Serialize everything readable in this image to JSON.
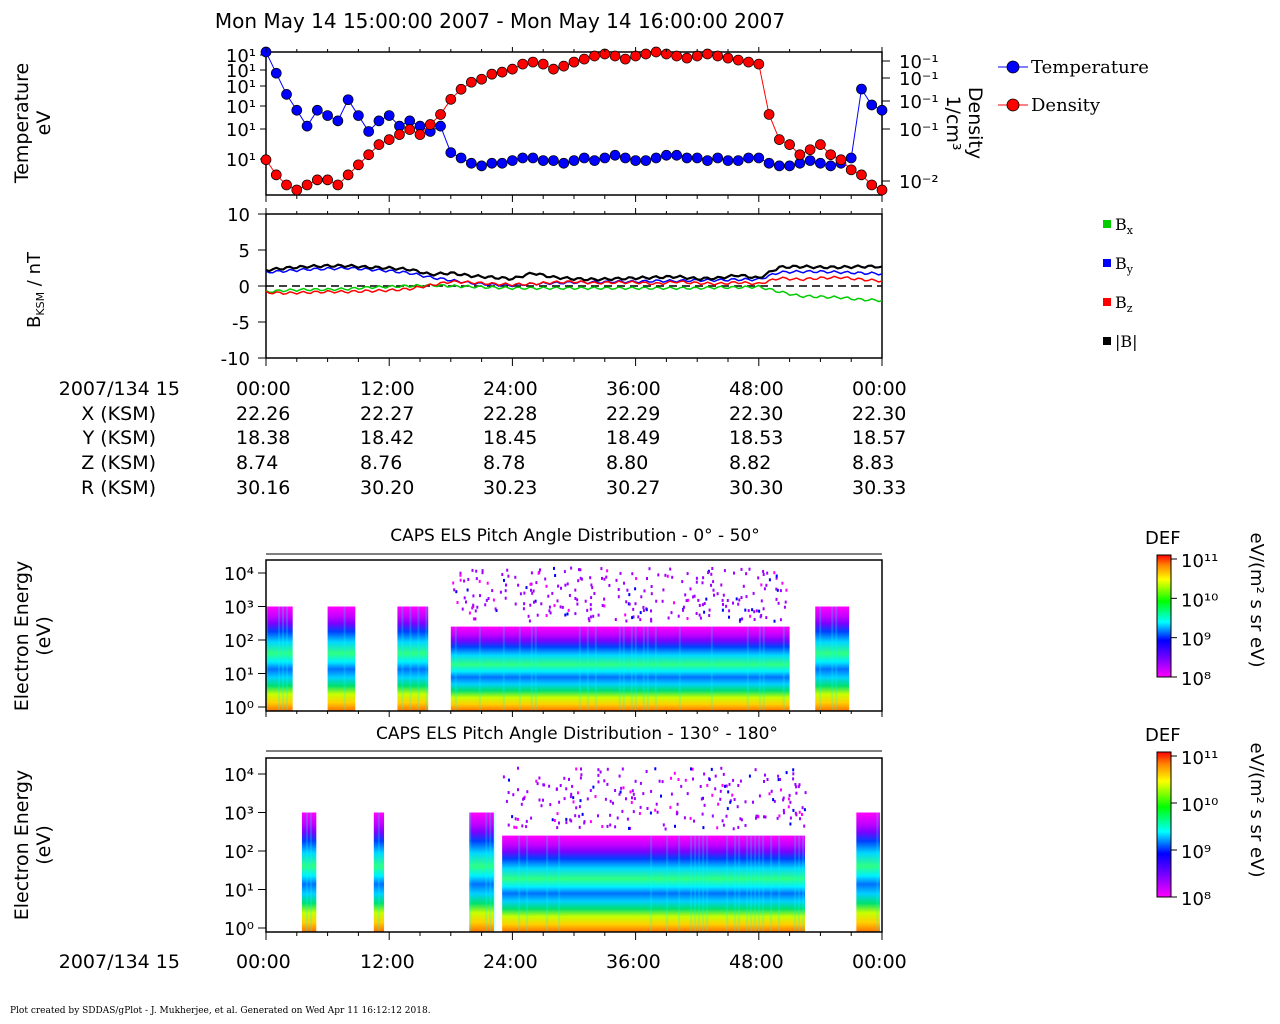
{
  "title": "Mon May 14 15:00:00 2007 - Mon May 14 16:00:00 2007",
  "footer": "Plot created by SDDAS/gPlot - J. Mukherjee, et al.  Generated on Wed Apr 11 16:12:12 2018.",
  "chart_data": [
    {
      "type": "line",
      "ylabel": [
        "Temperature",
        "eV"
      ],
      "ylabel_right": [
        "Density",
        "1/cm³"
      ],
      "left_tick_labels": [
        "10¹",
        "10¹",
        "10¹",
        "10¹",
        "10¹",
        "10¹"
      ],
      "right_tick_labels": [
        "10⁻¹",
        "10⁻¹",
        "10⁻¹",
        "10⁻¹",
        "10⁻²"
      ],
      "legend": [
        {
          "name": "Temperature",
          "color": "#0000ff"
        },
        {
          "name": "Density",
          "color": "#ff0000"
        }
      ],
      "x_minutes": [
        0,
        1,
        2,
        3,
        4,
        5,
        6,
        7,
        8,
        9,
        10,
        11,
        12,
        13,
        14,
        15,
        16,
        17,
        18,
        19,
        20,
        21,
        22,
        23,
        24,
        25,
        26,
        27,
        28,
        29,
        30,
        31,
        32,
        33,
        34,
        35,
        36,
        37,
        38,
        39,
        40,
        41,
        42,
        43,
        44,
        45,
        46,
        47,
        48,
        49,
        50,
        51,
        52,
        53,
        54,
        55,
        56,
        57,
        58,
        59,
        60
      ],
      "series": [
        {
          "name": "Temperature",
          "color": "#0000ff",
          "marker": "circle",
          "values_log10": [
            3.0,
            2.6,
            2.2,
            1.9,
            1.6,
            1.9,
            1.8,
            1.7,
            2.1,
            1.8,
            1.5,
            1.7,
            1.8,
            1.6,
            1.7,
            1.6,
            1.5,
            1.6,
            1.1,
            1.0,
            0.9,
            0.85,
            0.9,
            0.9,
            0.95,
            1.0,
            1.0,
            0.95,
            0.95,
            0.9,
            0.95,
            1.0,
            0.95,
            1.0,
            1.05,
            1.0,
            0.95,
            0.95,
            1.0,
            1.05,
            1.05,
            1.0,
            1.0,
            0.95,
            1.0,
            0.95,
            0.95,
            1.0,
            1.0,
            0.9,
            0.85,
            0.85,
            0.9,
            0.95,
            0.9,
            0.85,
            0.9,
            1.0,
            2.3,
            2.0,
            1.9
          ]
        },
        {
          "name": "Density",
          "color": "#ff0000",
          "marker": "circle",
          "values_log10": [
            -1.75,
            -1.9,
            -2.0,
            -2.05,
            -2.0,
            -1.95,
            -1.95,
            -2.0,
            -1.9,
            -1.8,
            -1.7,
            -1.6,
            -1.55,
            -1.5,
            -1.45,
            -1.5,
            -1.4,
            -1.3,
            -1.15,
            -1.05,
            -0.98,
            -0.95,
            -0.9,
            -0.88,
            -0.85,
            -0.8,
            -0.78,
            -0.8,
            -0.85,
            -0.82,
            -0.78,
            -0.75,
            -0.72,
            -0.7,
            -0.72,
            -0.75,
            -0.72,
            -0.7,
            -0.68,
            -0.7,
            -0.72,
            -0.74,
            -0.72,
            -0.7,
            -0.72,
            -0.74,
            -0.76,
            -0.78,
            -0.8,
            -1.3,
            -1.55,
            -1.6,
            -1.7,
            -1.65,
            -1.6,
            -1.7,
            -1.75,
            -1.85,
            -1.9,
            -2.0,
            -2.05
          ]
        }
      ]
    },
    {
      "type": "line",
      "ylabel": "B",
      "ylabel_subscript": "KSM",
      "ylabel_suffix": " / nT",
      "ylim": [
        -10,
        10
      ],
      "y_tick_labels": [
        "10",
        "5",
        "0",
        "-5",
        "-10"
      ],
      "legend": [
        {
          "name": "B",
          "sub": "x",
          "color": "#00cc00"
        },
        {
          "name": "B",
          "sub": "y",
          "color": "#0000ff"
        },
        {
          "name": "B",
          "sub": "z",
          "color": "#ff0000"
        },
        {
          "name": "|B|",
          "sub": "",
          "color": "#000000"
        }
      ],
      "x_minutes": [
        0,
        2,
        4,
        6,
        8,
        10,
        12,
        14,
        16,
        18,
        20,
        22,
        24,
        26,
        28,
        30,
        32,
        34,
        36,
        38,
        40,
        42,
        44,
        46,
        48,
        50,
        52,
        54,
        56,
        58,
        60
      ],
      "series": [
        {
          "name": "Bx",
          "color": "#00cc00",
          "values": [
            -0.8,
            -0.6,
            -0.5,
            -0.5,
            -0.4,
            -0.2,
            -0.1,
            0.0,
            0.1,
            0.0,
            -0.1,
            -0.2,
            -0.3,
            -0.3,
            -0.3,
            -0.3,
            -0.3,
            -0.3,
            -0.3,
            -0.3,
            -0.3,
            -0.3,
            -0.2,
            -0.2,
            -0.1,
            -0.8,
            -1.4,
            -1.5,
            -1.6,
            -1.9,
            -2.0
          ]
        },
        {
          "name": "By",
          "color": "#0000ff",
          "values": [
            1.9,
            2.1,
            2.3,
            2.4,
            2.5,
            2.3,
            2.1,
            1.8,
            1.2,
            0.8,
            0.4,
            0.2,
            0.1,
            0.3,
            0.4,
            0.5,
            0.5,
            0.6,
            0.6,
            0.7,
            0.7,
            0.8,
            0.8,
            0.9,
            0.9,
            1.9,
            2.0,
            2.0,
            1.9,
            1.8,
            1.7
          ]
        },
        {
          "name": "Bz",
          "color": "#ff0000",
          "values": [
            -0.9,
            -1.0,
            -0.9,
            -0.8,
            -0.8,
            -0.7,
            -0.6,
            -0.4,
            0.1,
            0.6,
            0.5,
            0.3,
            0.2,
            0.3,
            0.5,
            0.6,
            0.4,
            0.5,
            0.5,
            0.3,
            0.6,
            0.4,
            0.3,
            0.5,
            0.3,
            1.1,
            0.9,
            1.1,
            1.2,
            0.9,
            0.7
          ]
        },
        {
          "name": "|B|",
          "color": "#000000",
          "values": [
            2.2,
            2.5,
            2.7,
            2.8,
            2.8,
            2.6,
            2.5,
            2.3,
            1.6,
            1.8,
            1.4,
            1.2,
            1.0,
            1.8,
            1.2,
            1.0,
            0.9,
            1.0,
            1.1,
            1.2,
            1.3,
            1.0,
            1.1,
            1.5,
            1.1,
            2.6,
            2.7,
            2.6,
            2.6,
            2.7,
            2.7
          ]
        }
      ]
    },
    {
      "type": "heatmap",
      "title": "CAPS ELS Pitch Angle Distribution - 0° - 50°",
      "ylabel": [
        "Electron Energy",
        "(eV)"
      ],
      "y_tick_labels": [
        "10⁴",
        "10³",
        "10²",
        "10¹",
        "10⁰"
      ],
      "colorbar": {
        "label": "DEF",
        "units": "eV/(m² s sr eV)",
        "tick_labels": [
          "10¹¹",
          "10¹⁰",
          "10⁹",
          "10⁸"
        ]
      },
      "coverage_minutes": [
        [
          0.0,
          2.6
        ],
        [
          6.0,
          8.7
        ],
        [
          12.8,
          15.8
        ],
        [
          18.0,
          51.0
        ],
        [
          53.5,
          56.8
        ]
      ]
    },
    {
      "type": "heatmap",
      "title": "CAPS ELS Pitch Angle Distribution - 130° - 180°",
      "ylabel": [
        "Electron Energy",
        "(eV)"
      ],
      "y_tick_labels": [
        "10⁴",
        "10³",
        "10²",
        "10¹",
        "10⁰"
      ],
      "colorbar": {
        "label": "DEF",
        "units": "eV/(m² s sr eV)",
        "tick_labels": [
          "10¹¹",
          "10¹⁰",
          "10⁹",
          "10⁸"
        ]
      },
      "coverage_minutes": [
        [
          3.5,
          4.9
        ],
        [
          10.5,
          11.5
        ],
        [
          19.8,
          22.2
        ],
        [
          23.0,
          52.5
        ],
        [
          57.5,
          59.8
        ]
      ]
    }
  ],
  "ephemeris": {
    "row_labels": [
      "2007/134 15",
      "X (KSM)",
      "Y (KSM)",
      "Z (KSM)",
      "R (KSM)"
    ],
    "columns": [
      [
        "00:00",
        "22.26",
        "18.38",
        "8.74",
        "30.16"
      ],
      [
        "12:00",
        "22.27",
        "18.42",
        "8.76",
        "30.20"
      ],
      [
        "24:00",
        "22.28",
        "18.45",
        "8.78",
        "30.23"
      ],
      [
        "36:00",
        "22.29",
        "18.49",
        "8.80",
        "30.27"
      ],
      [
        "48:00",
        "22.30",
        "18.53",
        "8.82",
        "30.30"
      ],
      [
        "00:00",
        "22.30",
        "18.57",
        "8.83",
        "30.33"
      ]
    ]
  },
  "bottom_axis": {
    "label": "2007/134 15",
    "ticks": [
      "00:00",
      "12:00",
      "24:00",
      "36:00",
      "48:00",
      "00:00"
    ]
  }
}
